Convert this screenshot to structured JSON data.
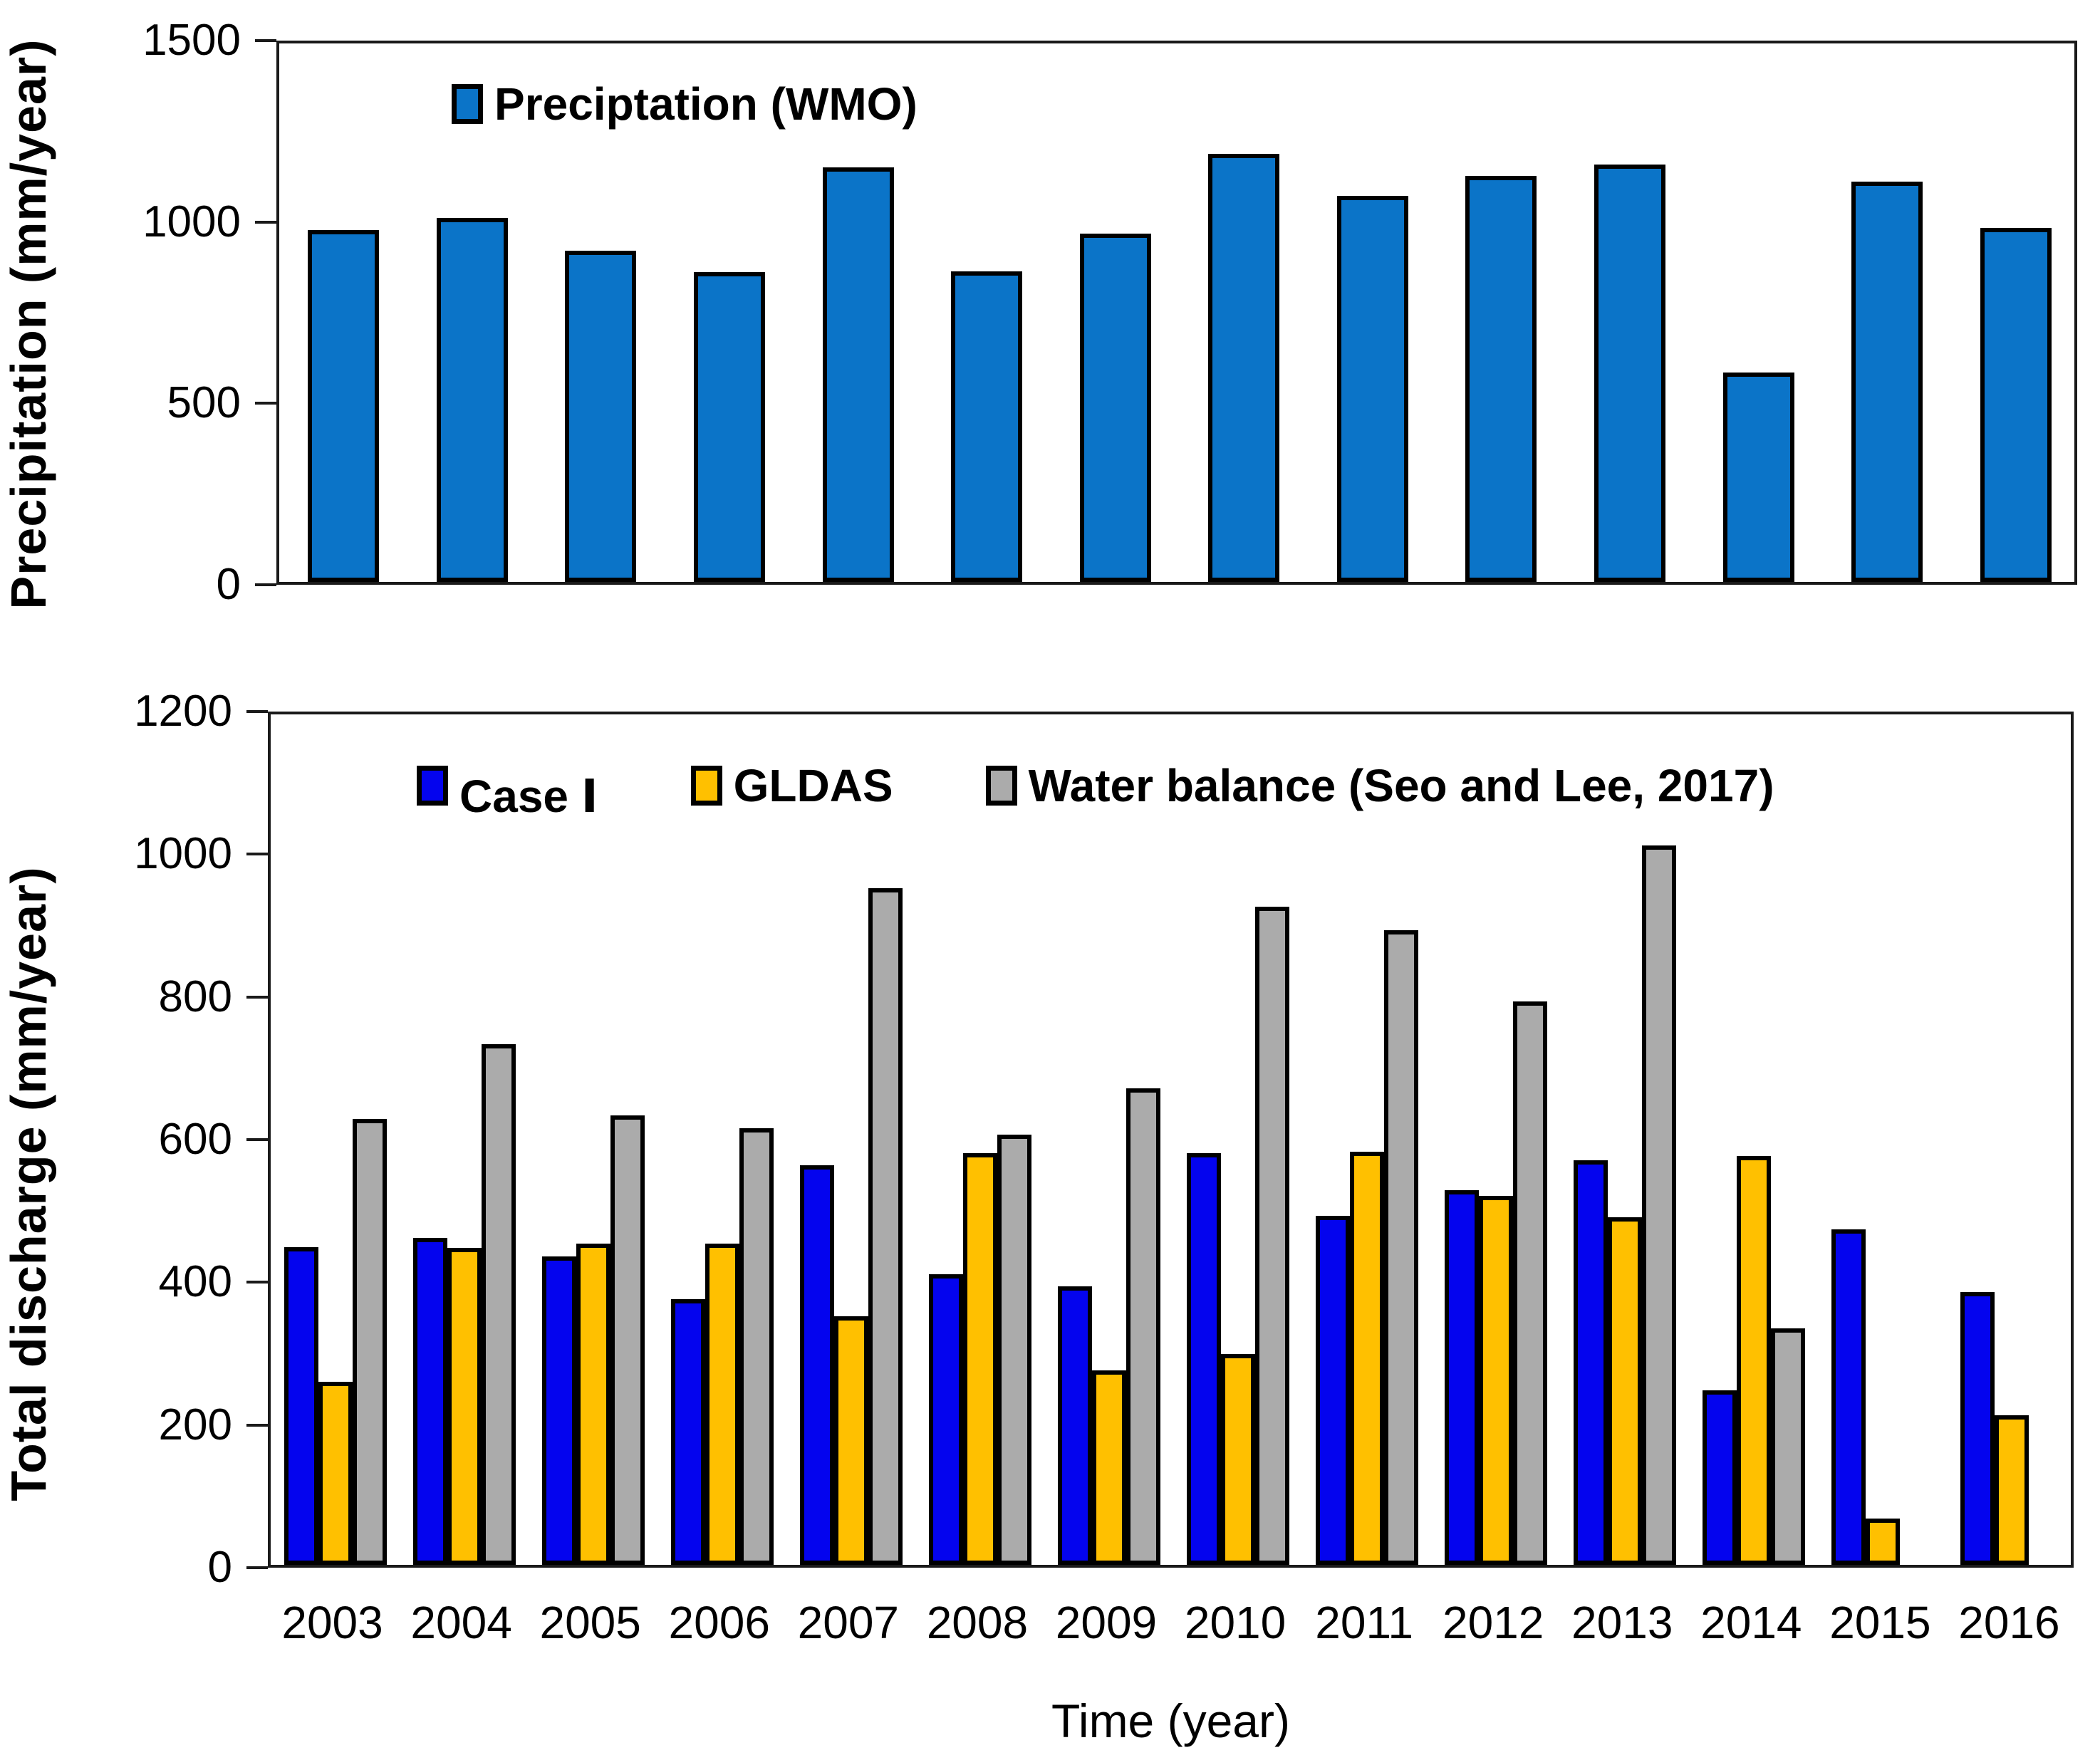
{
  "chart_data": [
    {
      "type": "bar",
      "title": "",
      "ylabel": "Precipitation (mm/year)",
      "xlabel": "",
      "ylim": [
        0,
        1500
      ],
      "yticks": [
        0,
        500,
        1000,
        1500
      ],
      "grid": false,
      "legend_position": "inside-top-left",
      "categories": [
        "2003",
        "2004",
        "2005",
        "2006",
        "2007",
        "2008",
        "2009",
        "2010",
        "2011",
        "2012",
        "2013",
        "2014",
        "2015",
        "2016"
      ],
      "series": [
        {
          "name": "Preciptation (WMO)",
          "color": "#0b74c8",
          "values": [
            970,
            1003,
            912,
            855,
            1143,
            857,
            960,
            1180,
            1065,
            1120,
            1150,
            578,
            1103,
            975
          ]
        }
      ]
    },
    {
      "type": "bar",
      "title": "",
      "ylabel": "Total discharge (mm/year)",
      "xlabel": "Time (year)",
      "ylim": [
        0,
        1200
      ],
      "yticks": [
        0,
        200,
        400,
        600,
        800,
        1000,
        1200
      ],
      "grid": false,
      "legend_position": "inside-top-left",
      "categories": [
        "2003",
        "2004",
        "2005",
        "2006",
        "2007",
        "2008",
        "2009",
        "2010",
        "2011",
        "2012",
        "2013",
        "2014",
        "2015",
        "2016"
      ],
      "series": [
        {
          "name": "Case Ⅰ",
          "color": "#0404ee",
          "values": [
            445,
            458,
            432,
            372,
            560,
            407,
            390,
            577,
            489,
            525,
            567,
            245,
            470,
            382
          ]
        },
        {
          "name": "GLDAS",
          "color": "#ffc000",
          "values": [
            257,
            444,
            450,
            450,
            348,
            577,
            273,
            296,
            579,
            517,
            487,
            573,
            65,
            210
          ]
        },
        {
          "name": "Water balance (Seo and Lee, 2017)",
          "color": "#ababab",
          "values": [
            625,
            730,
            630,
            612,
            948,
            603,
            668,
            922,
            890,
            790,
            1008,
            331,
            null,
            null
          ]
        }
      ]
    }
  ]
}
